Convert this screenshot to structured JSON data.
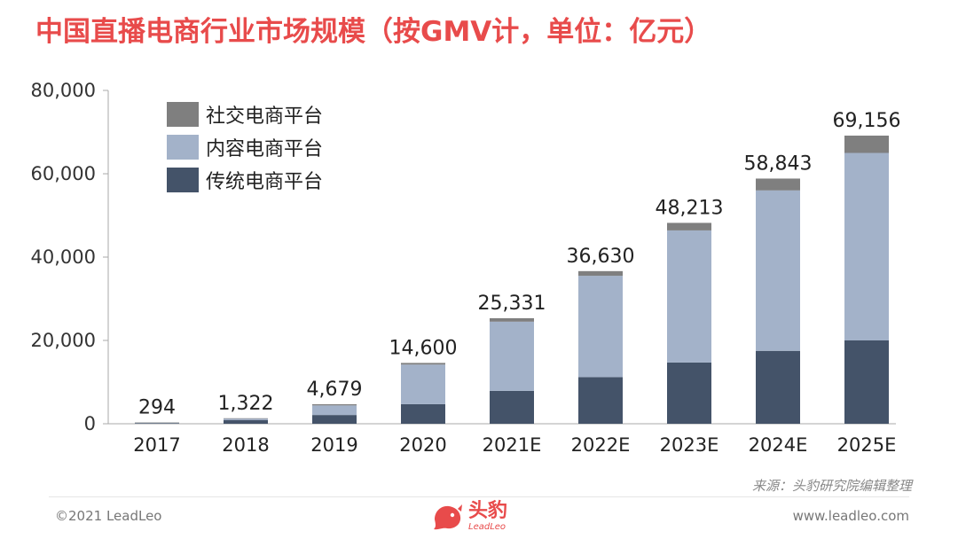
{
  "title": "中国直播电商行业市场规模（按GMV计，单位：亿元）",
  "source": "来源：头豹研究院编辑整理",
  "footer": {
    "copyright": "©2021 LeadLeo",
    "website": "www.leadleo.com",
    "logo_cn": "头豹",
    "logo_en": "LeadLeo"
  },
  "colors": {
    "social": "#7f7f7f",
    "content": "#a3b2c9",
    "traditional": "#445369",
    "axis": "#aaaaaa",
    "title": "#e84b4b"
  },
  "chart_data": {
    "type": "bar",
    "stacked": true,
    "categories": [
      "2017",
      "2018",
      "2019",
      "2020",
      "2021E",
      "2022E",
      "2023E",
      "2024E",
      "2025E"
    ],
    "totals": [
      294,
      1322,
      4679,
      14600,
      25331,
      36630,
      48213,
      58843,
      69156
    ],
    "total_labels": [
      "294",
      "1,322",
      "4,679",
      "14,600",
      "25,331",
      "36,630",
      "48,213",
      "58,843",
      "69,156"
    ],
    "series": [
      {
        "name": "传统电商平台",
        "values": [
          150,
          900,
          2100,
          4700,
          7900,
          11200,
          14700,
          17500,
          20000
        ]
      },
      {
        "name": "内容电商平台",
        "values": [
          120,
          370,
          2300,
          9500,
          16600,
          24300,
          31700,
          38500,
          45000
        ]
      },
      {
        "name": "社交电商平台",
        "values": [
          24,
          52,
          279,
          400,
          831,
          1130,
          1813,
          2843,
          4156
        ]
      }
    ],
    "legend_order": [
      "社交电商平台",
      "内容电商平台",
      "传统电商平台"
    ],
    "ylim": [
      0,
      80000
    ],
    "yticks": [
      0,
      20000,
      40000,
      60000,
      80000
    ],
    "ytick_labels": [
      "0",
      "20,000",
      "40,000",
      "60,000",
      "80,000"
    ],
    "xlabel": "",
    "ylabel": "",
    "grid": false,
    "legend_position": "top-left"
  }
}
